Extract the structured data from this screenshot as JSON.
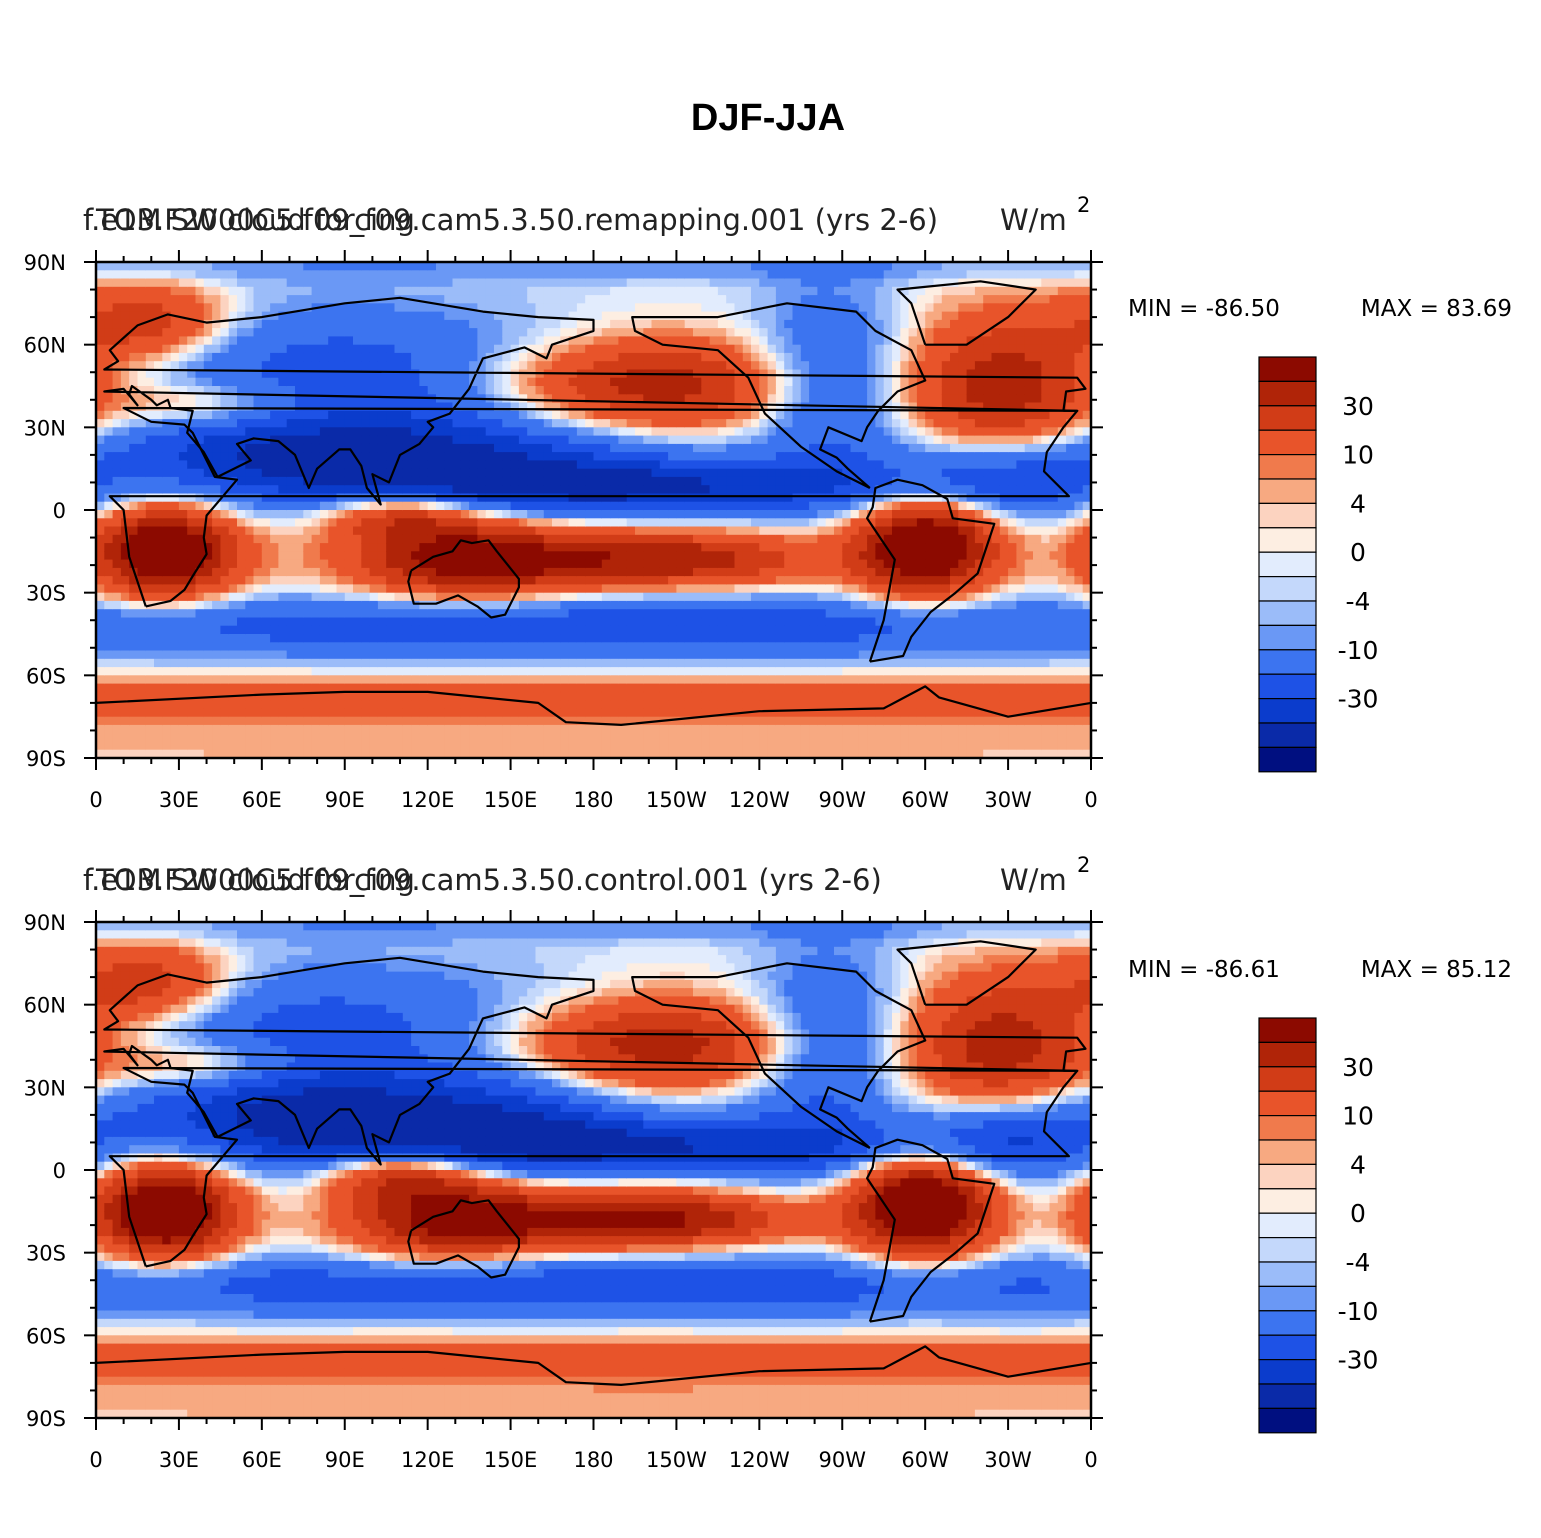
{
  "figure_title": "DJF-JJA",
  "colors": {
    "scale": [
      "#000f80",
      "#0a2aa8",
      "#0b3ccc",
      "#1e52e6",
      "#3c74f0",
      "#6a98f5",
      "#9bbcf9",
      "#c4d8fb",
      "#e2ecfd",
      "#fdeee2",
      "#fcd3c0",
      "#f7a981",
      "#f07a4c",
      "#e8542a",
      "#d13c17",
      "#b02408",
      "#8c0a00"
    ],
    "coast": "#000000",
    "axis": "#000000"
  },
  "chart_data": [
    {
      "type": "heatmap",
      "panel_title_left": "f.e13.F2000C5.f09_f09.cam5.3.50.remapping.001  (yrs 2-6)",
      "panel_title_overlay": "TOM SW cloud forcing",
      "units": "W/m",
      "units_exp": "2",
      "min_label": "MIN = -86.50",
      "max_label": "MAX =  83.69",
      "min": -86.5,
      "max": 83.69,
      "lon_ticks": [
        "0",
        "30E",
        "60E",
        "90E",
        "120E",
        "150E",
        "180",
        "150W",
        "120W",
        "90W",
        "60W",
        "30W",
        "0"
      ],
      "lat_ticks": [
        "90N",
        "60N",
        "30N",
        "0",
        "30S",
        "60S",
        "90S"
      ],
      "colorbar_labels": [
        "30",
        "10",
        "4",
        "0",
        "-4",
        "-10",
        "-30"
      ]
    },
    {
      "type": "heatmap",
      "panel_title_left": "f.e13.F2000C5.f09_f09.cam5.3.50.control.001  (yrs 2-6)",
      "panel_title_overlay": "TOM SW cloud forcing",
      "units": "W/m",
      "units_exp": "2",
      "min_label": "MIN = -86.61",
      "max_label": "MAX =  85.12",
      "min": -86.61,
      "max": 85.12,
      "lon_ticks": [
        "0",
        "30E",
        "60E",
        "90E",
        "120E",
        "150E",
        "180",
        "150W",
        "120W",
        "90W",
        "60W",
        "30W",
        "0"
      ],
      "lat_ticks": [
        "90N",
        "60N",
        "30N",
        "0",
        "30S",
        "60S",
        "90S"
      ],
      "colorbar_labels": [
        "30",
        "10",
        "4",
        "0",
        "-4",
        "-10",
        "-30"
      ]
    }
  ]
}
